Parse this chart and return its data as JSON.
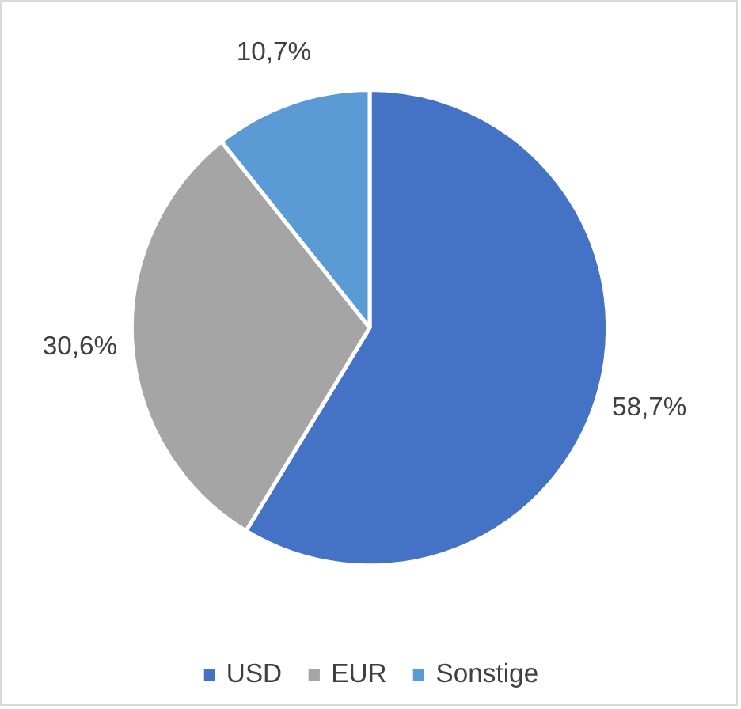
{
  "chart_data": {
    "type": "pie",
    "categories": [
      "USD",
      "EUR",
      "Sonstige"
    ],
    "values": [
      58.7,
      30.6,
      10.7
    ],
    "colors": [
      "#4472c4",
      "#a5a5a5",
      "#5b9bd5"
    ],
    "value_labels": [
      "58,7%",
      "30,6%",
      "10,7%"
    ],
    "legend": "bottom"
  }
}
